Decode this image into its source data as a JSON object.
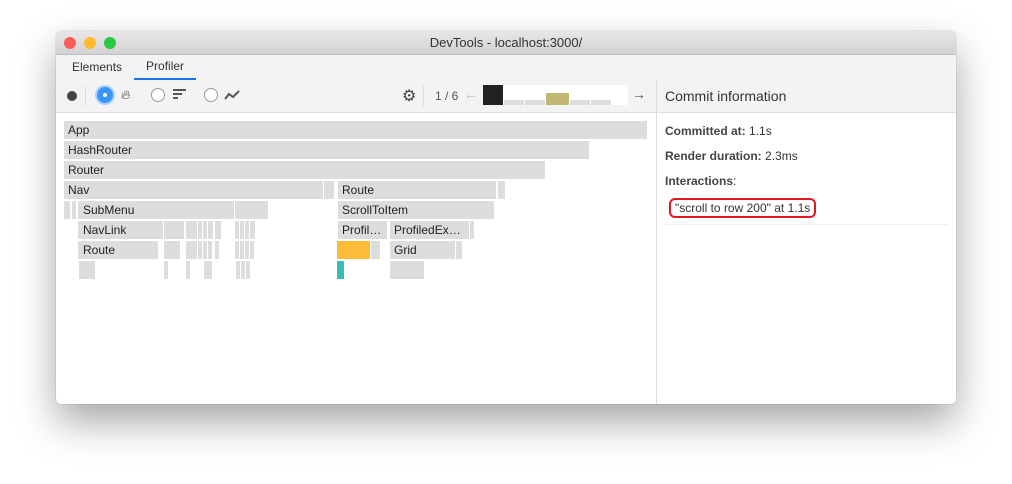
{
  "window": {
    "title": "DevTools - localhost:3000/"
  },
  "tabs": [
    {
      "label": "Elements"
    },
    {
      "label": "Profiler",
      "active": true
    }
  ],
  "toolbar": {
    "commit_counter": "1 / 6",
    "icons": [
      "record-icon",
      "flame-chart-icon",
      "ranked-chart-icon",
      "interactions-chart-icon",
      "gear-icon",
      "arrow-left-icon",
      "arrow-right-icon"
    ],
    "commit_durations_relative": [
      1.0,
      0.1,
      0.1,
      0.3,
      0.1,
      0.1
    ]
  },
  "flamegraph": {
    "labels": {
      "app": "App",
      "hashrouter": "HashRouter",
      "router": "Router",
      "nav": "Nav",
      "route1": "Route",
      "submenu": "SubMenu",
      "scrolltoitem": "ScrollToItem",
      "navlink": "NavLink",
      "profil": "Profil…",
      "profiledex": "ProfiledEx…",
      "route2": "Route",
      "grid": "Grid"
    },
    "colors": {
      "default": "#dddddd",
      "highlight": "#fcbc39",
      "teal": "#37bdb4"
    }
  },
  "commit_info": {
    "header": "Commit information",
    "committed_at_label": "Committed at",
    "committed_at": "1.1s",
    "render_duration_label": "Render duration",
    "render_duration": "2.3ms",
    "interactions_label": "Interactions",
    "interaction": "\"scroll to row 200\" at 1.1s"
  }
}
